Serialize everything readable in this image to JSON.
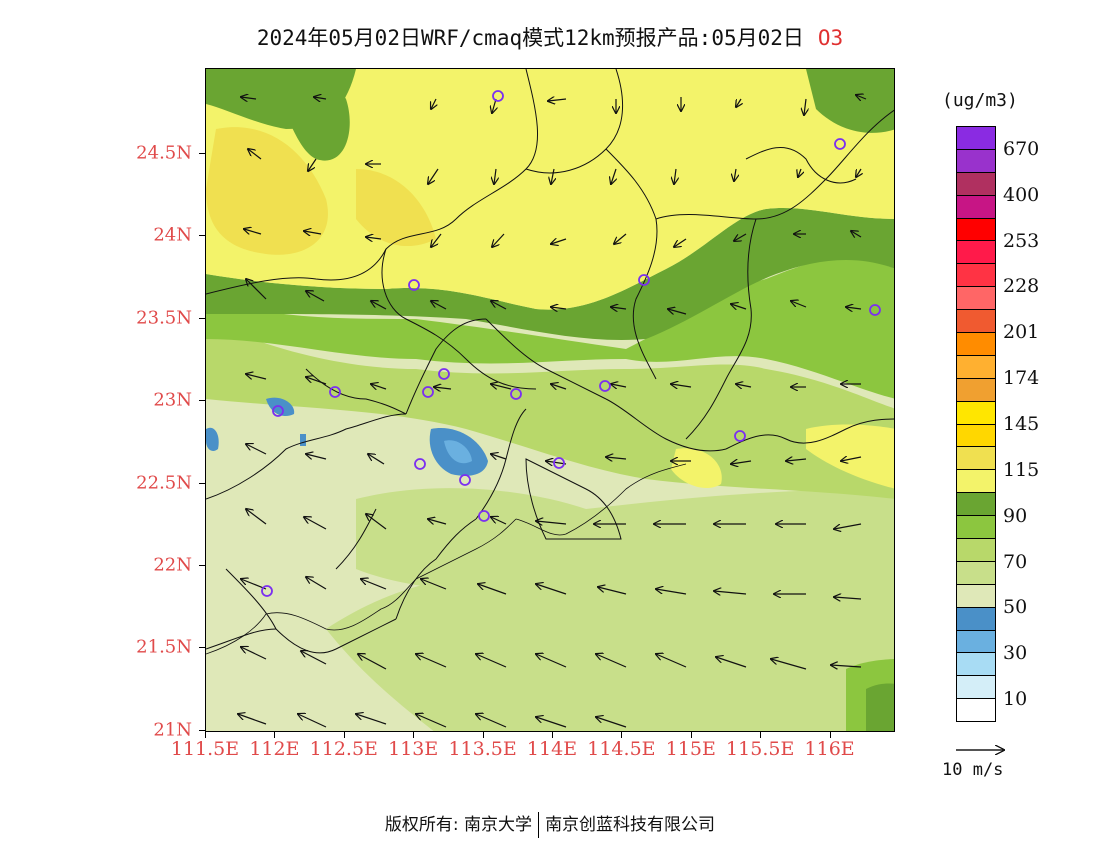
{
  "title": {
    "main": "2024年05月02日WRF/cmaq模式12km预报产品:05月02日",
    "species": "O3"
  },
  "axes": {
    "lat_labels": [
      "24.5N",
      "24N",
      "23.5N",
      "23N",
      "22.5N",
      "22N",
      "21.5N",
      "21N"
    ],
    "lon_labels": [
      "111.5E",
      "112E",
      "112.5E",
      "113E",
      "113.5E",
      "114E",
      "114.5E",
      "115E",
      "115.5E",
      "116E"
    ]
  },
  "colorbar": {
    "unit": "(ug/m3)",
    "labels": [
      "670",
      "400",
      "253",
      "228",
      "201",
      "174",
      "145",
      "115",
      "90",
      "70",
      "50",
      "30",
      "10"
    ],
    "colors_top_to_bottom": [
      "#8a2be2",
      "#9932cc",
      "#b03060",
      "#c71585",
      "#ff0000",
      "#ff1a4a",
      "#ff3344",
      "#ff6666",
      "#f05a30",
      "#ff8c00",
      "#ffb030",
      "#f0a030",
      "#ffe600",
      "#ffd700",
      "#f0e050",
      "#f3f36a",
      "#6aa532",
      "#8cc63f",
      "#b8d86a",
      "#c8df8a",
      "#dfe8b8",
      "#4a90c8",
      "#6ab0e0",
      "#a8dcf4",
      "#d4eef8",
      "#ffffff"
    ]
  },
  "wind_reference": {
    "label": "10 m/s"
  },
  "footer": {
    "left": "版权所有: 南京大学",
    "right": "南京创蓝科技有限公司"
  },
  "colors": {
    "axis_label": "#e04a4a",
    "station_marker": "#7b2ff0"
  }
}
